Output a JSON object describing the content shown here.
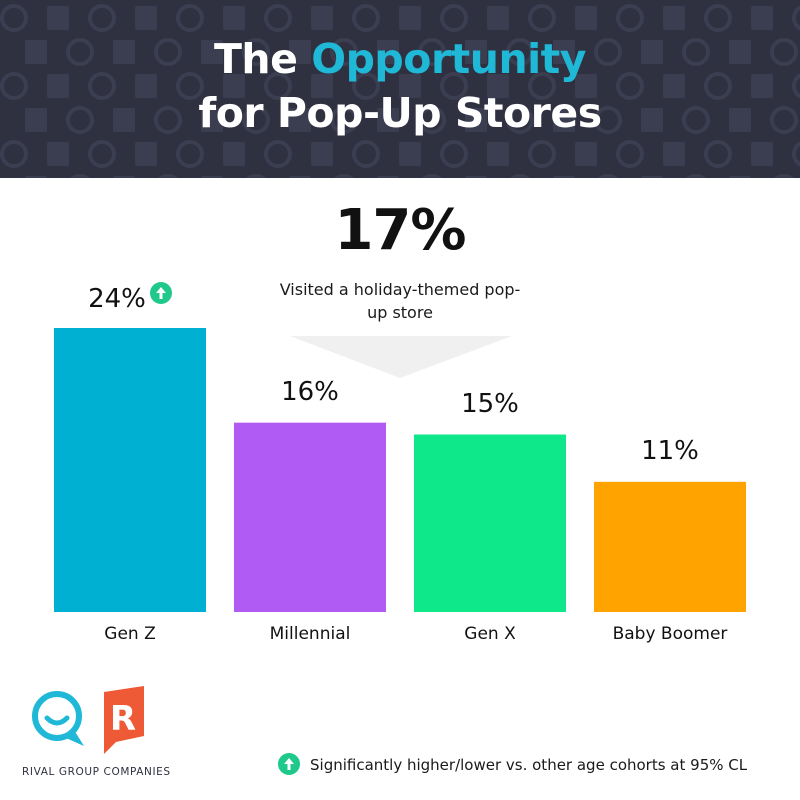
{
  "title": {
    "part1": "The ",
    "accent": "Opportunity",
    "line2": "for Pop-Up Stores"
  },
  "headline": {
    "value": "17%",
    "description": "Visited a holiday-themed pop-up store"
  },
  "chart_data": {
    "type": "bar",
    "categories": [
      "Gen Z",
      "Millennial",
      "Gen X",
      "Baby Boomer"
    ],
    "values": [
      24,
      16,
      15,
      11
    ],
    "value_labels": [
      "24%",
      "16%",
      "15%",
      "11%"
    ],
    "colors": [
      "#00b0d2",
      "#b05cf4",
      "#0fe88a",
      "#ffa300"
    ],
    "significant": [
      true,
      false,
      false,
      false
    ],
    "ylim": [
      0,
      24
    ]
  },
  "legend": {
    "text": "Significantly higher/lower vs. other age cohorts at 95% CL"
  },
  "brand": {
    "name": "RIVAL GROUP COMPANIES",
    "logo_letter": "R"
  },
  "colors": {
    "header_bg": "#2f3141",
    "accent": "#1fb8d6",
    "up_badge": "#1ec98b"
  }
}
